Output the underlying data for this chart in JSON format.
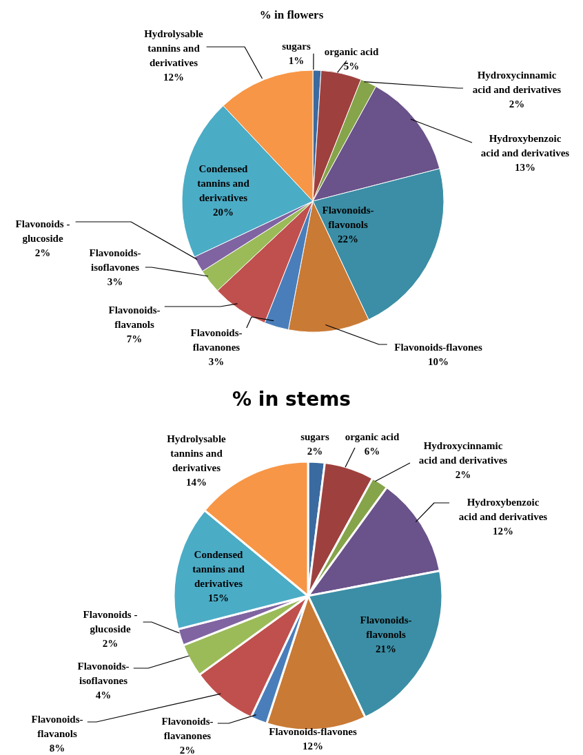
{
  "chart_data": [
    {
      "type": "pie",
      "title": "% in flowers",
      "categories": [
        "sugars",
        "organic acid",
        "Hydroxycinnamic acid and derivatives",
        "Hydroxybenzoic acid and derivatives",
        "Flavonoids-flavonols",
        "Flavonoids-flavones",
        "Flavonoids-flavanones",
        "Flavonoids-flavanols",
        "Flavonoids-isoflavones",
        "Flavonoids - glucoside",
        "Condensed tannins and derivatives",
        "Hydrolysable tannins and derivatives"
      ],
      "values": [
        1,
        5,
        2,
        13,
        22,
        10,
        3,
        7,
        3,
        2,
        20,
        12
      ],
      "value_labels": [
        "1%",
        "5%",
        "2%",
        "13%",
        "22%",
        "10%",
        "3%",
        "7%",
        "3%",
        "2%",
        "20%",
        "12%"
      ],
      "colors": [
        "#3b6aa0",
        "#9e413e",
        "#86a44a",
        "#6a528a",
        "#3b8ea5",
        "#c97a35",
        "#4a7ebb",
        "#c0504d",
        "#9bbb59",
        "#8064a2",
        "#4bacc6",
        "#f79646"
      ]
    },
    {
      "type": "pie",
      "title": "% in stems",
      "categories": [
        "sugars",
        "organic acid",
        "Hydroxycinnamic acid and derivatives",
        "Hydroxybenzoic acid and derivatives",
        "Flavonoids-flavonols",
        "Flavonoids-flavones",
        "Flavonoids-flavanones",
        "Flavonoids-flavanols",
        "Flavonoids-isoflavones",
        "Flavonoids - glucoside",
        "Condensed tannins and derivatives",
        "Hydrolysable tannins and derivatives"
      ],
      "values": [
        2,
        6,
        2,
        12,
        21,
        12,
        2,
        8,
        4,
        2,
        15,
        14
      ],
      "value_labels": [
        "2%",
        "6%",
        "2%",
        "12%",
        "21%",
        "12%",
        "2%",
        "8%",
        "4%",
        "2%",
        "15%",
        "14%"
      ],
      "colors": [
        "#3b6aa0",
        "#9e413e",
        "#86a44a",
        "#6a528a",
        "#3b8ea5",
        "#c97a35",
        "#4a7ebb",
        "#c0504d",
        "#9bbb59",
        "#8064a2",
        "#4bacc6",
        "#f79646"
      ]
    }
  ]
}
